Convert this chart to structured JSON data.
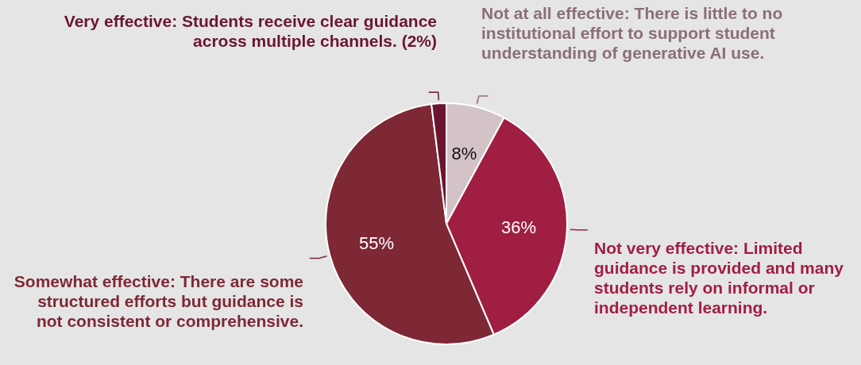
{
  "chart_data": {
    "type": "pie",
    "categories": [
      "Not at all effective: There is little to no institutional effort to support student understanding of generative AI use.",
      "Not very effective: Limited guidance is provided and many students rely on informal or independent learning.",
      "Somewhat effective: There are some structured efforts but guidance is not consistent or comprehensive.",
      "Very effective: Students receive clear guidance across multiple channels. (2%)"
    ],
    "values": [
      8,
      36,
      55,
      2
    ],
    "colors": [
      "#d3c3c7",
      "#a11e43",
      "#7e2835",
      "#6a1530"
    ],
    "value_labels": [
      "8%",
      "36%",
      "55%",
      null
    ]
  }
}
